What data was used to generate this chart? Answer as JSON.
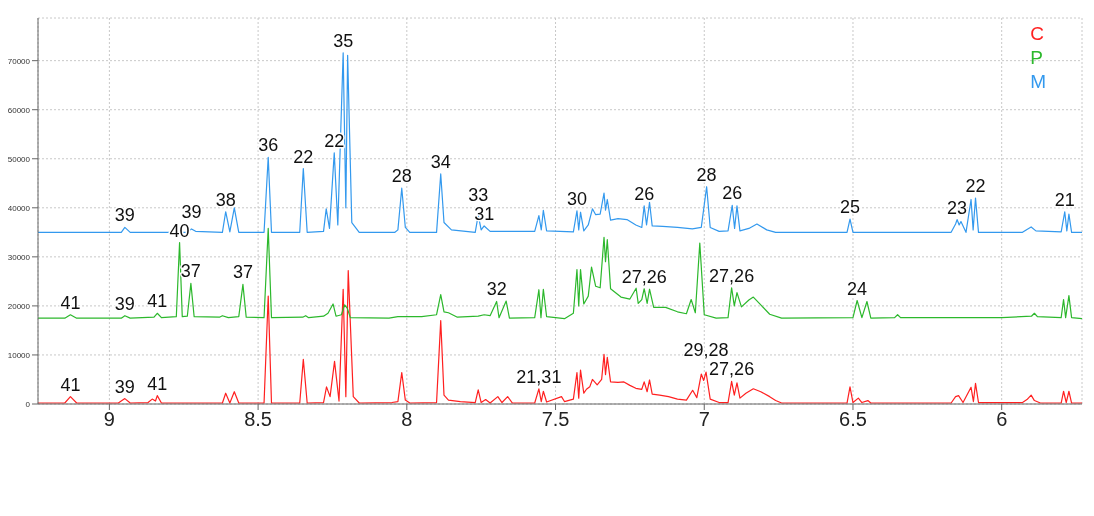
{
  "chart_data": {
    "type": "line",
    "xlim": [
      9.24,
      5.73
    ],
    "xticks": [
      9,
      8.5,
      8,
      7.5,
      7,
      6.5,
      6
    ],
    "ylim": [
      0,
      78700
    ],
    "yticks": [
      0,
      10000,
      20000,
      30000,
      40000,
      50000,
      60000,
      70000
    ],
    "grid": true,
    "legend": "top right",
    "series": [
      {
        "name": "C",
        "color": "#ff2020",
        "x": [
          9.24,
          9.15,
          9.131,
          9.11,
          8.97,
          8.948,
          8.93,
          8.87,
          8.856,
          8.845,
          8.839,
          8.825,
          8.62,
          8.609,
          8.595,
          8.58,
          8.565,
          8.48,
          8.466,
          8.455,
          8.36,
          8.348,
          8.335,
          8.28,
          8.27,
          8.258,
          8.243,
          8.228,
          8.214,
          8.205,
          8.197,
          8.18,
          8.16,
          8.05,
          8.03,
          8.017,
          8.005,
          7.99,
          7.9,
          7.886,
          7.875,
          7.86,
          7.82,
          7.77,
          7.76,
          7.75,
          7.735,
          7.72,
          7.694,
          7.68,
          7.661,
          7.645,
          7.57,
          7.556,
          7.548,
          7.541,
          7.53,
          7.48,
          7.47,
          7.44,
          7.428,
          7.422,
          7.416,
          7.405,
          7.396,
          7.385,
          7.376,
          7.36,
          7.345,
          7.337,
          7.332,
          7.326,
          7.315,
          7.29,
          7.27,
          7.25,
          7.23,
          7.21,
          7.202,
          7.192,
          7.184,
          7.175,
          7.15,
          7.12,
          7.09,
          7.06,
          7.039,
          7.025,
          7.01,
          7.002,
          6.994,
          6.98,
          6.95,
          6.92,
          6.908,
          6.899,
          6.89,
          6.88,
          6.86,
          6.835,
          6.81,
          6.78,
          6.76,
          6.74,
          6.52,
          6.51,
          6.5,
          6.482,
          6.47,
          6.45,
          6.44,
          6.17,
          6.155,
          6.145,
          6.13,
          6.103,
          6.095,
          6.088,
          6.078,
          5.93,
          5.915,
          5.901,
          5.89,
          5.87,
          5.8,
          5.792,
          5.783,
          5.774,
          5.765,
          5.73
        ],
        "values": [
          200,
          200,
          1500,
          200,
          200,
          1100,
          200,
          300,
          1000,
          600,
          1700,
          200,
          200,
          2200,
          200,
          2500,
          200,
          200,
          22000,
          200,
          200,
          9100,
          200,
          300,
          3500,
          1500,
          8700,
          600,
          23400,
          1500,
          27200,
          1500,
          200,
          300,
          500,
          6400,
          800,
          200,
          300,
          17000,
          1800,
          800,
          500,
          300,
          2900,
          300,
          900,
          200,
          1500,
          300,
          1500,
          200,
          200,
          3100,
          500,
          2600,
          400,
          1500,
          500,
          1000,
          6400,
          1200,
          6900,
          2200,
          3000,
          3500,
          5000,
          3900,
          5000,
          10100,
          6000,
          9500,
          4500,
          4400,
          4500,
          3800,
          3200,
          3000,
          4500,
          2500,
          4900,
          2000,
          1800,
          1500,
          1000,
          800,
          2800,
          1300,
          6100,
          4800,
          6500,
          1000,
          300,
          300,
          4600,
          1800,
          4300,
          1200,
          2200,
          3100,
          2500,
          1500,
          700,
          200,
          200,
          3500,
          300,
          1200,
          300,
          700,
          200,
          200,
          1500,
          1700,
          300,
          3400,
          500,
          4200,
          300,
          300,
          900,
          1800,
          700,
          200,
          200,
          2600,
          300,
          2600,
          200,
          200
        ]
      },
      {
        "name": "P",
        "color": "#2cb82c",
        "x": [
          9.24,
          9.15,
          9.131,
          9.11,
          8.96,
          8.948,
          8.93,
          8.85,
          8.839,
          8.825,
          8.775,
          8.764,
          8.755,
          8.738,
          8.726,
          8.715,
          8.63,
          8.62,
          8.6,
          8.565,
          8.551,
          8.54,
          8.48,
          8.466,
          8.455,
          8.35,
          8.34,
          8.33,
          8.28,
          8.265,
          8.248,
          8.238,
          8.22,
          8.209,
          8.2,
          8.19,
          8.06,
          8.03,
          7.95,
          7.9,
          7.886,
          7.875,
          7.86,
          7.83,
          7.76,
          7.74,
          7.72,
          7.698,
          7.69,
          7.666,
          7.655,
          7.57,
          7.556,
          7.549,
          7.541,
          7.53,
          7.47,
          7.44,
          7.428,
          7.422,
          7.416,
          7.405,
          7.39,
          7.379,
          7.365,
          7.35,
          7.337,
          7.332,
          7.326,
          7.315,
          7.28,
          7.25,
          7.229,
          7.222,
          7.21,
          7.202,
          7.192,
          7.184,
          7.17,
          7.13,
          7.09,
          7.06,
          7.044,
          7.03,
          7.015,
          7.0,
          6.96,
          6.92,
          6.908,
          6.899,
          6.89,
          6.875,
          6.85,
          6.835,
          6.81,
          6.78,
          6.74,
          6.5,
          6.486,
          6.47,
          6.453,
          6.44,
          6.36,
          6.35,
          6.34,
          6.0,
          5.9,
          5.89,
          5.88,
          5.8,
          5.792,
          5.785,
          5.774,
          5.765,
          5.73
        ],
        "values": [
          17500,
          17500,
          18200,
          17500,
          17500,
          18000,
          17500,
          17700,
          18500,
          17600,
          17800,
          32900,
          17800,
          17900,
          24600,
          17800,
          17700,
          18000,
          17600,
          17800,
          24400,
          17700,
          17600,
          35800,
          17600,
          17700,
          18000,
          17600,
          17900,
          18500,
          20400,
          17900,
          18200,
          20200,
          19500,
          17600,
          17500,
          17800,
          17800,
          18200,
          22300,
          18800,
          18600,
          17700,
          17900,
          18200,
          18000,
          20900,
          17600,
          21000,
          17500,
          17600,
          23300,
          17600,
          23400,
          17800,
          17400,
          18500,
          27400,
          20000,
          27400,
          20400,
          22000,
          27900,
          24000,
          23700,
          34000,
          29000,
          33500,
          23500,
          21800,
          21400,
          23600,
          20500,
          21300,
          23500,
          20500,
          23400,
          19700,
          19700,
          18800,
          18400,
          21300,
          18600,
          32800,
          18200,
          17500,
          17600,
          23700,
          20000,
          22700,
          19800,
          21200,
          21800,
          20200,
          18300,
          17500,
          17600,
          21100,
          17600,
          20900,
          17500,
          17600,
          18200,
          17600,
          17600,
          17900,
          18500,
          17800,
          17600,
          21300,
          17600,
          22100,
          17600,
          17400
        ]
      },
      {
        "name": "M",
        "color": "#3399ee",
        "x": [
          9.24,
          8.96,
          8.948,
          8.93,
          8.74,
          8.724,
          8.71,
          8.62,
          8.609,
          8.595,
          8.58,
          8.565,
          8.48,
          8.466,
          8.455,
          8.36,
          8.348,
          8.335,
          8.28,
          8.271,
          8.26,
          8.244,
          8.232,
          8.214,
          8.205,
          8.199,
          8.185,
          8.16,
          8.04,
          8.03,
          8.017,
          8.005,
          7.99,
          7.9,
          7.886,
          7.875,
          7.85,
          7.77,
          7.76,
          7.75,
          7.74,
          7.72,
          7.57,
          7.556,
          7.548,
          7.541,
          7.53,
          7.44,
          7.428,
          7.422,
          7.416,
          7.405,
          7.39,
          7.376,
          7.365,
          7.35,
          7.337,
          7.332,
          7.326,
          7.315,
          7.29,
          7.26,
          7.23,
          7.21,
          7.202,
          7.194,
          7.184,
          7.175,
          7.14,
          7.09,
          7.04,
          7.01,
          6.992,
          6.98,
          6.95,
          6.92,
          6.906,
          6.898,
          6.89,
          6.88,
          6.85,
          6.823,
          6.79,
          6.76,
          6.52,
          6.51,
          6.5,
          6.17,
          6.155,
          6.15,
          6.143,
          6.137,
          6.12,
          6.103,
          6.096,
          6.088,
          6.078,
          5.93,
          5.915,
          5.901,
          5.885,
          5.8,
          5.788,
          5.781,
          5.774,
          5.765,
          5.73
        ],
        "values": [
          35000,
          35000,
          36000,
          35000,
          35000,
          35700,
          35200,
          35000,
          39200,
          35100,
          40000,
          35000,
          35000,
          50300,
          35000,
          35000,
          48000,
          35000,
          35200,
          39800,
          35800,
          51200,
          36500,
          71600,
          40000,
          71100,
          37000,
          35000,
          35000,
          35500,
          44000,
          36000,
          35000,
          35000,
          46900,
          37000,
          35500,
          35000,
          38500,
          35500,
          36300,
          35200,
          35200,
          38400,
          35500,
          39500,
          35300,
          35100,
          39400,
          35500,
          39100,
          35300,
          36500,
          39800,
          38600,
          38700,
          43000,
          39500,
          41700,
          37500,
          37800,
          37600,
          36500,
          36000,
          40400,
          36500,
          41100,
          36300,
          36200,
          36000,
          35700,
          36000,
          44300,
          36000,
          35200,
          35300,
          40500,
          35800,
          40400,
          35300,
          35800,
          36700,
          35500,
          35000,
          35000,
          37700,
          35000,
          35000,
          36700,
          37600,
          36500,
          37200,
          35000,
          41700,
          35500,
          42000,
          35000,
          35000,
          35600,
          36100,
          35300,
          35100,
          39200,
          35300,
          38700,
          35000,
          35000
        ]
      }
    ],
    "annotations": [
      {
        "text": "39",
        "x": 8.948,
        "y": 36000
      },
      {
        "text": "39",
        "x": 8.724,
        "y": 35700
      },
      {
        "text": "38",
        "x": 8.609,
        "y": 39200
      },
      {
        "text": "36",
        "x": 8.466,
        "y": 50300
      },
      {
        "text": "22",
        "x": 8.348,
        "y": 48000
      },
      {
        "text": "22",
        "x": 8.244,
        "y": 51200
      },
      {
        "text": "35",
        "x": 8.214,
        "y": 71600
      },
      {
        "text": "28",
        "x": 8.017,
        "y": 44000
      },
      {
        "text": "34",
        "x": 7.886,
        "y": 46900
      },
      {
        "text": "33",
        "x": 7.76,
        "y": 38500
      },
      {
        "text": "31",
        "x": 7.74,
        "y": 36300
      },
      {
        "text": "30",
        "x": 7.428,
        "y": 39400
      },
      {
        "text": "26",
        "x": 7.202,
        "y": 40400
      },
      {
        "text": "28",
        "x": 6.992,
        "y": 44300
      },
      {
        "text": "26",
        "x": 6.906,
        "y": 40500
      },
      {
        "text": "25",
        "x": 6.51,
        "y": 37700
      },
      {
        "text": "23",
        "x": 6.15,
        "y": 37600
      },
      {
        "text": "22",
        "x": 6.088,
        "y": 42000
      },
      {
        "text": "21",
        "x": 5.788,
        "y": 39200
      },
      {
        "text": "41",
        "x": 9.131,
        "y": 18200
      },
      {
        "text": "39",
        "x": 8.948,
        "y": 18000
      },
      {
        "text": "41",
        "x": 8.839,
        "y": 18500
      },
      {
        "text": "40",
        "x": 8.764,
        "y": 32900
      },
      {
        "text": "37",
        "x": 8.726,
        "y": 24600
      },
      {
        "text": "37",
        "x": 8.551,
        "y": 24400
      },
      {
        "text": "32",
        "x": 7.698,
        "y": 20900
      },
      {
        "text": "27,26",
        "x": 7.202,
        "y": 23500
      },
      {
        "text": "27,26",
        "x": 6.908,
        "y": 23700
      },
      {
        "text": "24",
        "x": 6.486,
        "y": 21100
      },
      {
        "text": "41",
        "x": 9.131,
        "y": 1500
      },
      {
        "text": "39",
        "x": 8.948,
        "y": 1100
      },
      {
        "text": "41",
        "x": 8.839,
        "y": 1700
      },
      {
        "text": "21,31",
        "x": 7.556,
        "y": 3100
      },
      {
        "text": "29,28",
        "x": 6.994,
        "y": 6500
      },
      {
        "text": "27,26",
        "x": 6.908,
        "y": 4600
      }
    ]
  }
}
